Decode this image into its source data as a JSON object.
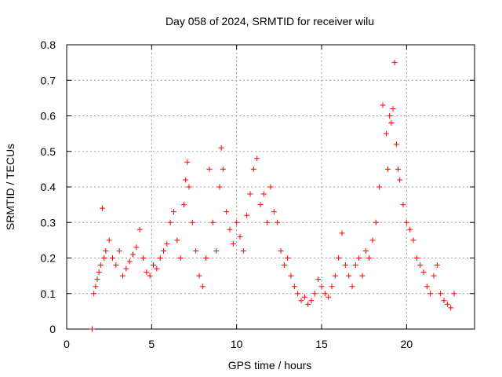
{
  "chart_data": {
    "type": "scatter",
    "title": "Day 058 of 2024, SRMTID for receiver wilu",
    "xlabel": "GPS time / hours",
    "ylabel": "SRMTID / TECUs",
    "xlim": [
      0,
      24
    ],
    "ylim": [
      0,
      0.8
    ],
    "xticks": [
      0,
      5,
      10,
      15,
      20
    ],
    "yticks": [
      0,
      0.1,
      0.2,
      0.3,
      0.4,
      0.5,
      0.6,
      0.7,
      0.8
    ],
    "xtick_labels": [
      "0",
      "5",
      "10",
      "15",
      "20"
    ],
    "ytick_labels": [
      "0",
      "0.1",
      "0.2",
      "0.3",
      "0.4",
      "0.5",
      "0.6",
      "0.7",
      "0.8"
    ],
    "grid": true,
    "marker": "+",
    "marker_color": "#ff0000",
    "series": [
      {
        "name": "wilu",
        "x": [
          1.5,
          1.6,
          1.7,
          1.8,
          1.9,
          2.0,
          2.1,
          2.2,
          2.3,
          2.5,
          2.7,
          2.9,
          3.1,
          3.3,
          3.5,
          3.7,
          3.9,
          4.1,
          4.3,
          4.5,
          4.7,
          4.9,
          5.1,
          5.3,
          5.5,
          5.7,
          5.9,
          6.1,
          6.3,
          6.5,
          6.7,
          6.9,
          7.0,
          7.1,
          7.2,
          7.4,
          7.6,
          7.8,
          8.0,
          8.2,
          8.4,
          8.6,
          8.8,
          9.0,
          9.1,
          9.2,
          9.4,
          9.6,
          9.8,
          10.0,
          10.2,
          10.4,
          10.6,
          10.8,
          11.0,
          11.2,
          11.4,
          11.6,
          11.8,
          12.0,
          12.2,
          12.4,
          12.6,
          12.8,
          13.0,
          13.2,
          13.4,
          13.6,
          13.8,
          14.0,
          14.2,
          14.4,
          14.6,
          14.8,
          15.0,
          15.2,
          15.4,
          15.6,
          15.8,
          16.0,
          16.2,
          16.4,
          16.6,
          16.8,
          17.0,
          17.2,
          17.4,
          17.6,
          17.8,
          18.0,
          18.2,
          18.4,
          18.6,
          18.8,
          18.9,
          19.0,
          19.1,
          19.2,
          19.3,
          19.4,
          19.5,
          19.6,
          19.8,
          20.0,
          20.2,
          20.4,
          20.6,
          20.8,
          21.0,
          21.2,
          21.4,
          21.6,
          21.8,
          22.0,
          22.2,
          22.4,
          22.6,
          22.8
        ],
        "y": [
          0.0,
          0.1,
          0.12,
          0.14,
          0.16,
          0.18,
          0.34,
          0.2,
          0.22,
          0.25,
          0.2,
          0.18,
          0.22,
          0.15,
          0.17,
          0.19,
          0.21,
          0.23,
          0.28,
          0.2,
          0.16,
          0.15,
          0.18,
          0.17,
          0.2,
          0.22,
          0.24,
          0.3,
          0.33,
          0.25,
          0.2,
          0.35,
          0.42,
          0.47,
          0.4,
          0.3,
          0.22,
          0.15,
          0.12,
          0.2,
          0.45,
          0.3,
          0.22,
          0.4,
          0.51,
          0.45,
          0.33,
          0.28,
          0.24,
          0.3,
          0.26,
          0.22,
          0.32,
          0.38,
          0.45,
          0.48,
          0.35,
          0.38,
          0.3,
          0.4,
          0.33,
          0.3,
          0.22,
          0.18,
          0.2,
          0.15,
          0.12,
          0.1,
          0.08,
          0.09,
          0.07,
          0.08,
          0.1,
          0.14,
          0.12,
          0.1,
          0.09,
          0.12,
          0.15,
          0.2,
          0.27,
          0.18,
          0.15,
          0.12,
          0.18,
          0.2,
          0.15,
          0.22,
          0.2,
          0.25,
          0.3,
          0.4,
          0.63,
          0.55,
          0.45,
          0.6,
          0.58,
          0.62,
          0.75,
          0.52,
          0.45,
          0.42,
          0.35,
          0.3,
          0.28,
          0.25,
          0.2,
          0.18,
          0.16,
          0.12,
          0.1,
          0.15,
          0.18,
          0.1,
          0.08,
          0.07,
          0.06,
          0.1
        ]
      }
    ]
  }
}
